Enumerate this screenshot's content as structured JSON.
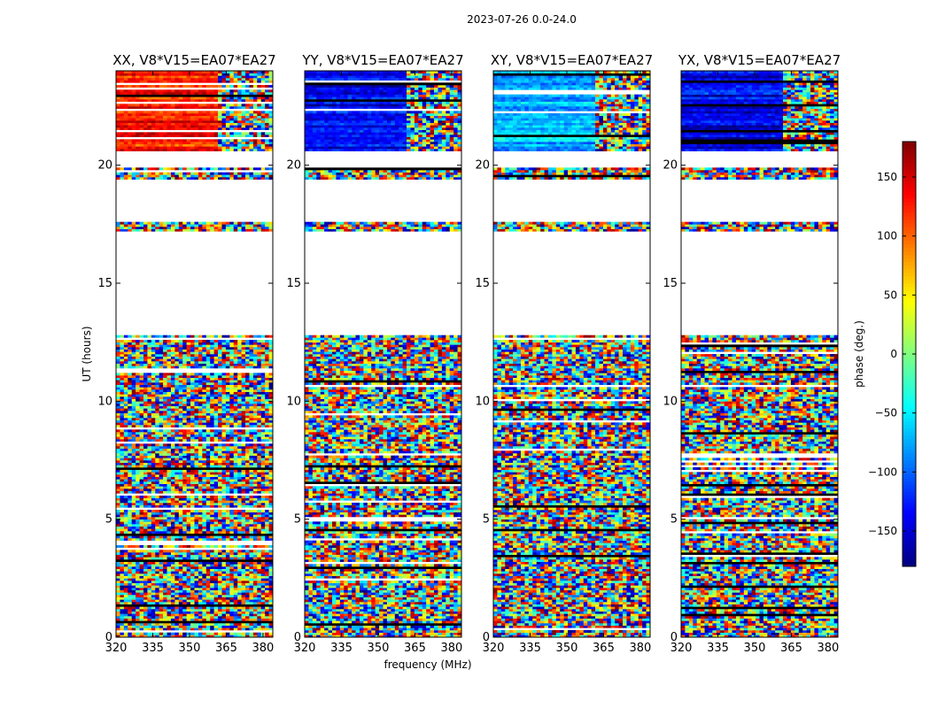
{
  "figure": {
    "suptitle": "2023-07-26 0.0-24.0"
  },
  "chart_data": {
    "type": "heatmap",
    "panels": [
      {
        "title": "XX, V8*V15=EA07*EA27",
        "polarization": "XX"
      },
      {
        "title": "YY, V8*V15=EA07*EA27",
        "polarization": "YY"
      },
      {
        "title": "XY, V8*V15=EA07*EA27",
        "polarization": "XY"
      },
      {
        "title": "YX, V8*V15=EA07*EA27",
        "polarization": "YX"
      }
    ],
    "xlabel": "frequency (MHz)",
    "ylabel": "UT (hours)",
    "xlim": [
      320,
      384
    ],
    "ylim": [
      0,
      24
    ],
    "xticks": [
      320,
      335,
      350,
      365,
      380
    ],
    "yticks": [
      0,
      5,
      10,
      15,
      20
    ],
    "colorbar": {
      "label": "phase (deg.)",
      "range": [
        -180,
        180
      ],
      "ticks": [
        -150,
        -100,
        -50,
        0,
        50,
        100,
        150
      ],
      "tick_labels": [
        "−150",
        "−100",
        "−50",
        "0",
        "50",
        "100",
        "150"
      ],
      "colormap": "jet"
    },
    "flagged_hours": [
      [
        12.8,
        17.2
      ],
      [
        17.6,
        19.4
      ],
      [
        19.95,
        20.6
      ]
    ],
    "coherent_phase_hours": [
      [
        20.6,
        24.0
      ]
    ],
    "coherent_phase_deg": {
      "XX": 130,
      "YY": -140,
      "XY": -70,
      "YX": -140
    }
  }
}
